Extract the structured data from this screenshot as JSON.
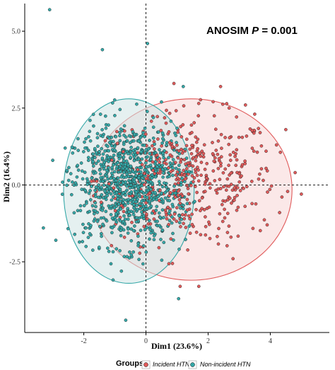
{
  "chart_data": {
    "type": "scatter",
    "title": "",
    "xlabel": "Dim1 (23.6%)",
    "ylabel": "Dim2 (16.4%)",
    "xlim": [
      -3.9,
      5.9
    ],
    "ylim": [
      -4.8,
      5.9
    ],
    "x_ticks": [
      -2,
      0,
      2,
      4
    ],
    "x_tick_labels": [
      "-2",
      "0",
      "2",
      "4"
    ],
    "y_ticks": [
      -2.5,
      0,
      2.5,
      5.0
    ],
    "y_tick_labels": [
      "-2.5",
      "0.0",
      "2.5",
      "5.0"
    ],
    "reference_lines": {
      "x": 0,
      "y": 0,
      "style": "dashed"
    },
    "annotation": {
      "prefix": "ANOSIM ",
      "italic": "P",
      "suffix": " = 0.001"
    },
    "legend": {
      "title": "Groups",
      "position": "bottom"
    },
    "grid": false,
    "series": [
      {
        "name": "Incident HTN",
        "color": "#E05A5A",
        "fill": "#F8D6D6",
        "ellipse": {
          "cx": 1.45,
          "cy": -0.15,
          "rx": 3.25,
          "ry": 2.95
        },
        "cluster": {
          "cx": 1.3,
          "cy": 0.2,
          "sx": 1.45,
          "sy": 1.05,
          "n": 480
        },
        "points": [
          [
            3.2,
            2.6
          ],
          [
            4.2,
            1.3
          ],
          [
            4.8,
            0.4
          ],
          [
            5.0,
            -0.3
          ],
          [
            4.3,
            -0.9
          ],
          [
            3.9,
            -1.3
          ],
          [
            2.8,
            -2.4
          ],
          [
            4.5,
            1.8
          ],
          [
            2.4,
            3.2
          ],
          [
            0.9,
            3.3
          ],
          [
            3.5,
            2.3
          ],
          [
            1.1,
            -3.3
          ],
          [
            1.7,
            -3.3
          ]
        ]
      },
      {
        "name": "Non-incident HTN",
        "color": "#35A8A8",
        "fill": "#CFE3E3",
        "ellipse": {
          "cx": -0.55,
          "cy": -0.2,
          "rx": 2.1,
          "ry": 3.0
        },
        "cluster": {
          "cx": -0.6,
          "cy": 0.05,
          "sx": 1.0,
          "sy": 1.0,
          "n": 950
        },
        "points": [
          [
            -3.1,
            5.7
          ],
          [
            -1.4,
            4.4
          ],
          [
            0.05,
            4.6
          ],
          [
            -3.3,
            -1.4
          ],
          [
            -3.0,
            0.8
          ],
          [
            -2.9,
            -1.8
          ],
          [
            -2.6,
            1.2
          ],
          [
            -0.65,
            -4.4
          ],
          [
            1.05,
            -3.7
          ],
          [
            -1.8,
            2.1
          ],
          [
            0.5,
            2.7
          ],
          [
            1.2,
            3.2
          ]
        ]
      }
    ]
  }
}
